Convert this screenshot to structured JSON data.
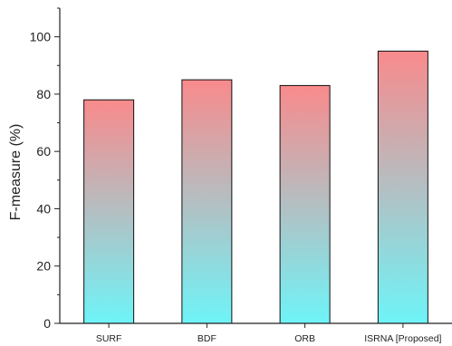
{
  "chart_data": {
    "type": "bar",
    "categories": [
      "SURF",
      "BDF",
      "ORB",
      "ISRNA [Proposed]"
    ],
    "values": [
      78,
      85,
      83,
      95
    ],
    "xlabel": "",
    "ylabel": "F-measure (%)",
    "ylim": [
      0,
      110
    ],
    "yticks": [
      0,
      20,
      40,
      60,
      80,
      100
    ],
    "grid": false,
    "colors": {
      "bar_top": "#f98a8c",
      "bar_bottom": "#6ef4f8",
      "axis": "#222222"
    }
  }
}
